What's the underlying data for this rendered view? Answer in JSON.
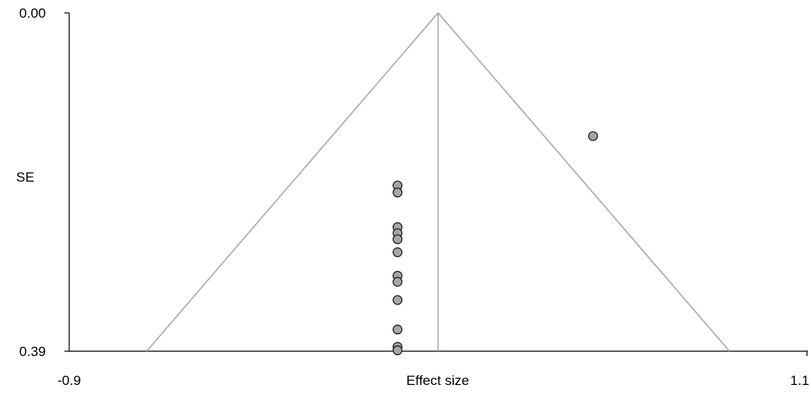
{
  "chart_data": {
    "type": "scatter",
    "title": "",
    "xlabel": "Effect size",
    "ylabel": "SE",
    "xlim": [
      -0.9,
      1.1
    ],
    "ylim": [
      0.0,
      0.39
    ],
    "y_inverted": true,
    "x_tick_labels": [
      "-0.9",
      "1.1"
    ],
    "y_tick_labels": [
      "0.00",
      "0.39"
    ],
    "pooled_effect": 0.1,
    "funnel": {
      "apex": [
        0.1,
        0.0
      ],
      "left_base": [
        -0.69,
        0.39
      ],
      "right_base": [
        0.89,
        0.39
      ]
    },
    "points": [
      {
        "x": 0.52,
        "y": 0.142
      },
      {
        "x": -0.01,
        "y": 0.199
      },
      {
        "x": -0.01,
        "y": 0.207
      },
      {
        "x": -0.01,
        "y": 0.247
      },
      {
        "x": -0.01,
        "y": 0.254
      },
      {
        "x": -0.01,
        "y": 0.261
      },
      {
        "x": -0.01,
        "y": 0.276
      },
      {
        "x": -0.01,
        "y": 0.303
      },
      {
        "x": -0.01,
        "y": 0.31
      },
      {
        "x": -0.01,
        "y": 0.331
      },
      {
        "x": -0.01,
        "y": 0.365
      },
      {
        "x": -0.01,
        "y": 0.385
      },
      {
        "x": -0.01,
        "y": 0.389
      }
    ],
    "grid": false,
    "legend": "none"
  }
}
